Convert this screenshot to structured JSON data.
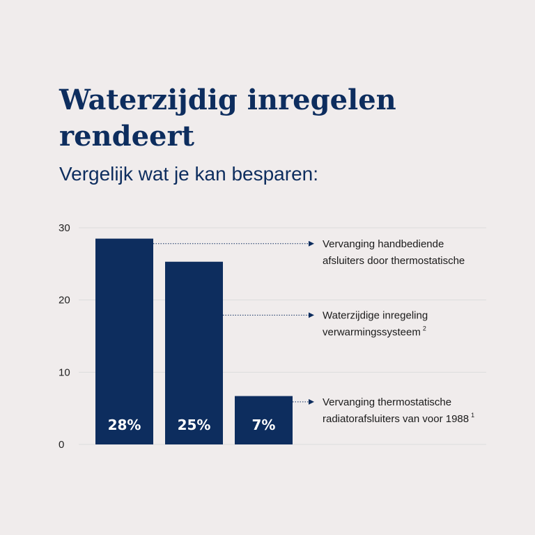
{
  "title": "Waterzijdig inregelen rendeert",
  "subtitle": "Vergelijk wat je kan besparen:",
  "colors": {
    "bar": "#0d2d5e",
    "background": "#f0ecec",
    "grid": "#dcdcdc",
    "text": "#0d2d5e"
  },
  "chart_data": {
    "type": "bar",
    "categories": [
      "28%",
      "25%",
      "7%"
    ],
    "values": [
      28.5,
      25.3,
      6.7
    ],
    "value_labels": [
      "28%",
      "25%",
      "7%"
    ],
    "yticks": [
      0,
      10,
      20,
      30
    ],
    "ylim": [
      0,
      30
    ],
    "grid": true,
    "annotations": [
      {
        "bar": 0,
        "at": 27.8,
        "lines": [
          "Vervanging handbediende",
          "afsluiters door thermostatische"
        ],
        "sup": ""
      },
      {
        "bar": 1,
        "at": 17.9,
        "lines": [
          "Waterzijdige inregeling",
          "verwarmingssysteem"
        ],
        "sup": "2"
      },
      {
        "bar": 2,
        "at": 5.9,
        "lines": [
          "Vervanging thermostatische",
          "radiatorafsluiters van voor 1988"
        ],
        "sup": "1"
      }
    ]
  }
}
